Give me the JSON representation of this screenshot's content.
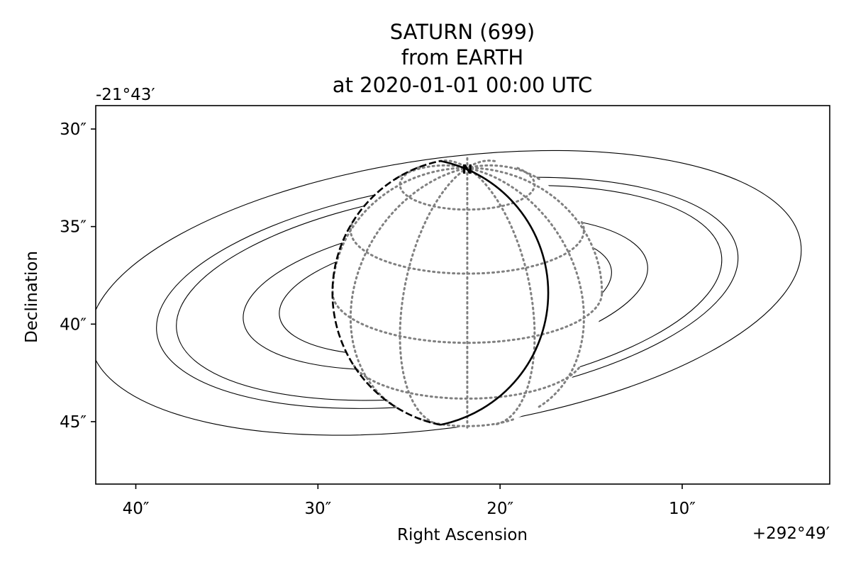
{
  "chart_data": {
    "type": "scatter",
    "title_lines": [
      "SATURN (699)",
      "from EARTH",
      "at 2020-01-01 00:00 UTC"
    ],
    "xlabel": "Right Ascension",
    "ylabel": "Declination",
    "x_offset_label": "+292°49′",
    "y_offset_label": "-21°43′",
    "x_ticks": [
      {
        "value": 40,
        "label": "40″"
      },
      {
        "value": 30,
        "label": "30″"
      },
      {
        "value": 20,
        "label": "20″"
      },
      {
        "value": 10,
        "label": "10″"
      }
    ],
    "y_ticks": [
      {
        "value": 30,
        "label": "30″"
      },
      {
        "value": 35,
        "label": "35″"
      },
      {
        "value": 40,
        "label": "40″"
      },
      {
        "value": 45,
        "label": "45″"
      }
    ],
    "xlim": [
      42.2,
      1.9
    ],
    "ylim": [
      28.8,
      48.2
    ],
    "grid": false,
    "north_marker": "N",
    "disk": {
      "center_ra_sec": 21.8,
      "center_dec_arcsec": 38.4,
      "radius_arcsec": 6.9
    },
    "rings": [
      {
        "name": "ring-1",
        "center_ra_sec": 23.0,
        "center_dec_arcsec": 38.4,
        "semi_major_ra_sec": 19.7,
        "semi_minor_dec_arcsec": 6.9
      },
      {
        "name": "ring-2",
        "center_ra_sec": 22.9,
        "center_dec_arcsec": 38.4,
        "semi_major_ra_sec": 16.1,
        "semi_minor_dec_arcsec": 5.6
      },
      {
        "name": "ring-3",
        "center_ra_sec": 22.8,
        "center_dec_arcsec": 38.4,
        "semi_major_ra_sec": 15.1,
        "semi_minor_dec_arcsec": 5.2
      },
      {
        "name": "ring-4",
        "center_ra_sec": 23.0,
        "center_dec_arcsec": 38.4,
        "semi_major_ra_sec": 11.2,
        "semi_minor_dec_arcsec": 3.7
      },
      {
        "name": "ring-5",
        "center_ra_sec": 23.0,
        "center_dec_arcsec": 38.4,
        "semi_major_ra_sec": 9.2,
        "semi_minor_dec_arcsec": 3.0
      }
    ]
  }
}
